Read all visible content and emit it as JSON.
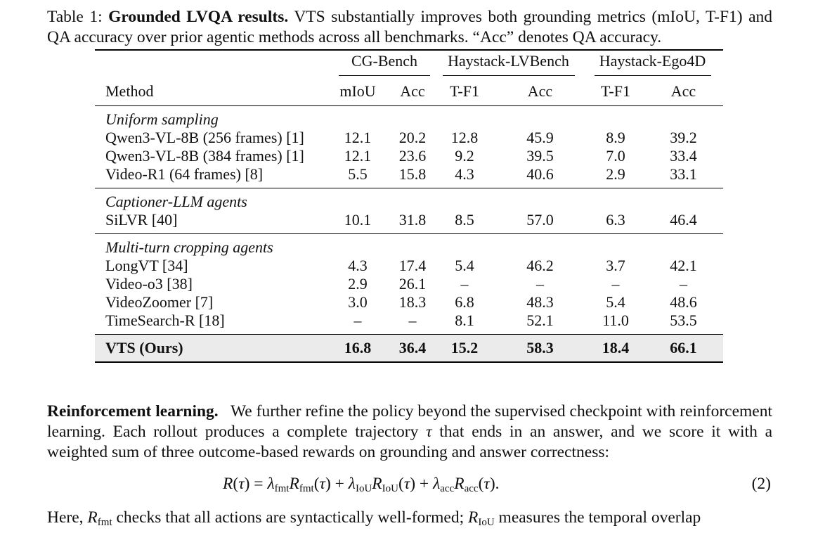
{
  "caption": {
    "label": "Table 1:",
    "title": "Grounded LVQA results.",
    "text": "VTS substantially improves both grounding metrics (mIoU, T-F1) and QA accuracy over prior agentic methods across all benchmarks. “Acc” denotes QA accuracy."
  },
  "table": {
    "groups": [
      "CG-Bench",
      "Haystack-LVBench",
      "Haystack-Ego4D"
    ],
    "headers": [
      "Method",
      "mIoU",
      "Acc",
      "T-F1",
      "Acc",
      "T-F1",
      "Acc"
    ],
    "sections": [
      {
        "name": "Uniform sampling",
        "rows": [
          {
            "method": "Qwen3-VL-8B (256 frames) [1]",
            "values": [
              "12.1",
              "20.2",
              "12.8",
              "45.9",
              "8.9",
              "39.2"
            ]
          },
          {
            "method": "Qwen3-VL-8B (384 frames) [1]",
            "values": [
              "12.1",
              "23.6",
              "9.2",
              "39.5",
              "7.0",
              "33.4"
            ]
          },
          {
            "method": "Video-R1 (64 frames) [8]",
            "values": [
              "5.5",
              "15.8",
              "4.3",
              "40.6",
              "2.9",
              "33.1"
            ]
          }
        ]
      },
      {
        "name": "Captioner-LLM agents",
        "rows": [
          {
            "method": "SiLVR [40]",
            "values": [
              "10.1",
              "31.8",
              "8.5",
              "57.0",
              "6.3",
              "46.4"
            ]
          }
        ]
      },
      {
        "name": "Multi-turn cropping agents",
        "rows": [
          {
            "method": "LongVT [34]",
            "values": [
              "4.3",
              "17.4",
              "5.4",
              "46.2",
              "3.7",
              "42.1"
            ]
          },
          {
            "method": "Video-o3 [38]",
            "values": [
              "2.9",
              "26.1",
              "–",
              "–",
              "–",
              "–"
            ]
          },
          {
            "method": "VideoZoomer [7]",
            "values": [
              "3.0",
              "18.3",
              "6.8",
              "48.3",
              "5.4",
              "48.6"
            ]
          },
          {
            "method": "TimeSearch-R [18]",
            "values": [
              "–",
              "–",
              "8.1",
              "52.1",
              "11.0",
              "53.5"
            ]
          }
        ]
      }
    ],
    "ours": {
      "method": "VTS (Ours)",
      "values": [
        "16.8",
        "36.4",
        "15.2",
        "58.3",
        "18.4",
        "66.1"
      ]
    }
  },
  "paragraph": {
    "heading": "Reinforcement learning.",
    "text_before_tau": "We further refine the policy beyond the supervised checkpoint with reinforcement learning. Each rollout produces a complete trajectory",
    "tau": "τ",
    "text_after_tau": "that ends in an answer, and we score it with a weighted sum of three outcome-based rewards on grounding and answer correctness:"
  },
  "equation": {
    "number": "(2)"
  },
  "last_line": {
    "t1": "Here,",
    "t2": "checks that all actions are syntactically well-formed;",
    "t3": "measures the temporal overlap"
  }
}
